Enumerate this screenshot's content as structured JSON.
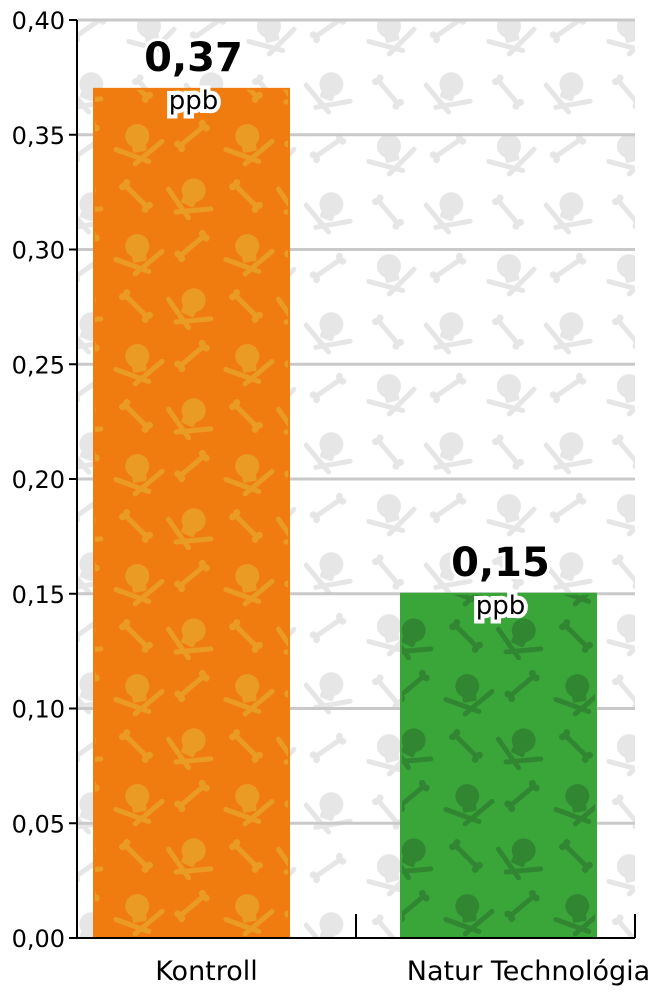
{
  "chart_data": {
    "type": "bar",
    "categories": [
      "Kontroll",
      "Natur Technológia"
    ],
    "values": [
      0.37,
      0.15
    ],
    "value_labels": [
      "0,37",
      "0,15"
    ],
    "unit_labels": [
      "ppb",
      "ppb"
    ],
    "bar_colors": [
      "#f07c10",
      "#3aa63a"
    ],
    "ylim": [
      0,
      0.4
    ],
    "yticks": [
      "0,00",
      "0,05",
      "0,10",
      "0,15",
      "0,20",
      "0,25",
      "0,30",
      "0,35",
      "0,40"
    ],
    "ytick_values": [
      0,
      0.05,
      0.1,
      0.15,
      0.2,
      0.25,
      0.3,
      0.35,
      0.4
    ],
    "grid": true,
    "gridline_color": "#c9c9c9",
    "background_pattern": "skull-and-crossbones",
    "pattern_color": "#e6e6e6",
    "axis_color": "#000000",
    "title": "",
    "xlabel": "",
    "ylabel": ""
  }
}
